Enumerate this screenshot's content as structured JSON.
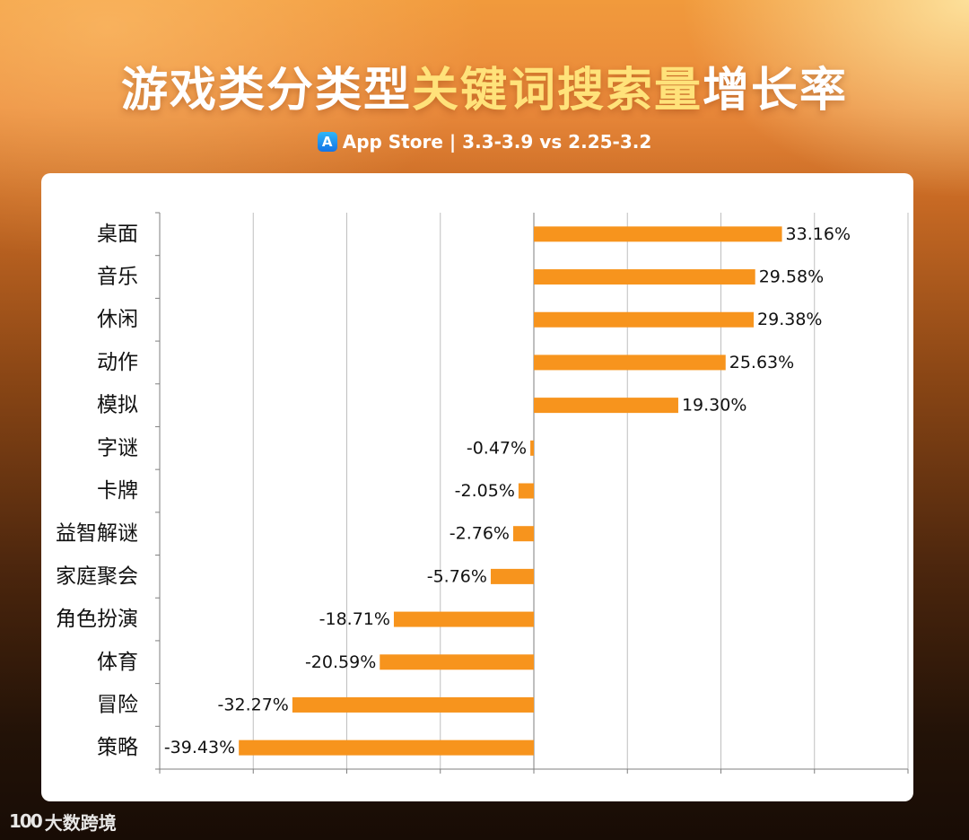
{
  "header": {
    "title_part1": "游戏类分类型",
    "title_part2": "关键词搜索量",
    "title_part3": "增长率",
    "subtitle": "App Store | 3.3-3.9 vs 2.25-3.2"
  },
  "footer": {
    "brand": "大数跨境",
    "brand_mark": "100"
  },
  "colors": {
    "bar": "#f7941d",
    "title_highlight": "#ffe27a",
    "grid": "#bfbfbf",
    "axis": "#7f7f7f"
  },
  "chart_data": {
    "type": "bar",
    "orientation": "horizontal",
    "categories": [
      "桌面",
      "音乐",
      "休闲",
      "动作",
      "模拟",
      "字谜",
      "卡牌",
      "益智解谜",
      "家庭聚会",
      "角色扮演",
      "体育",
      "冒险",
      "策略"
    ],
    "values": [
      33.16,
      29.58,
      29.38,
      25.63,
      19.3,
      -0.47,
      -2.05,
      -2.76,
      -5.76,
      -18.71,
      -20.59,
      -32.27,
      -39.43
    ],
    "labels": [
      "33.16%",
      "29.58%",
      "29.38%",
      "25.63%",
      "19.30%",
      "-0.47%",
      "-2.05%",
      "-2.76%",
      "-5.76%",
      "-18.71%",
      "-20.59%",
      "-32.27%",
      "-39.43%"
    ],
    "unit": "%",
    "xlim": [
      -50,
      50
    ],
    "xgrid_step": 12.5,
    "grid": true,
    "legend": false,
    "title": "",
    "xlabel": "",
    "ylabel": ""
  }
}
